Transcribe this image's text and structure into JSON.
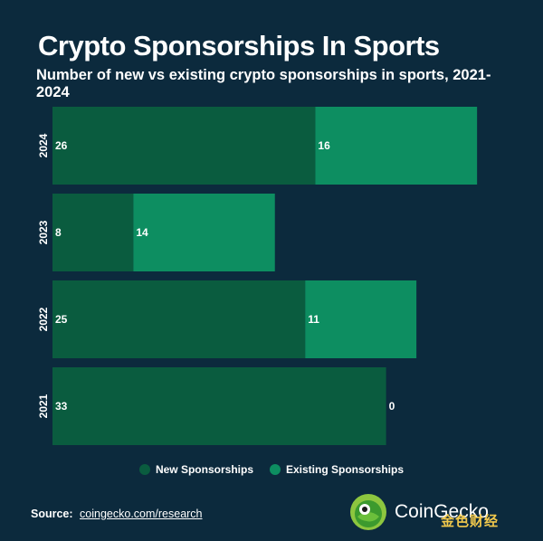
{
  "title": "Crypto Sponsorships In Sports",
  "subtitle": "Number of new vs existing crypto sponsorships in sports, 2021-2024",
  "colors": {
    "background": "#0c2a3d",
    "new": "#0a5c3f",
    "existing": "#0d8e61",
    "text": "#ffffff"
  },
  "chart_data": {
    "type": "bar",
    "orientation": "horizontal",
    "stacked": true,
    "title": "Crypto Sponsorships In Sports",
    "subtitle": "Number of new vs existing crypto sponsorships in sports, 2021-2024",
    "categories": [
      "2024",
      "2023",
      "2022",
      "2021"
    ],
    "series": [
      {
        "name": "New Sponsorships",
        "values": [
          26,
          8,
          25,
          33
        ]
      },
      {
        "name": "Existing Sponsorships",
        "values": [
          16,
          14,
          11,
          0
        ]
      }
    ],
    "xlim": [
      0,
      42
    ],
    "grid": false,
    "legend": "bottom-center"
  },
  "legend": {
    "items": [
      {
        "label": "New Sponsorships",
        "color": "#0a5c3f"
      },
      {
        "label": "Existing Sponsorships",
        "color": "#0d8e61"
      }
    ]
  },
  "source": {
    "label": "Source:",
    "link": "coingecko.com/research"
  },
  "brand": {
    "name": "CoinGecko",
    "icon": "gecko-logo-icon"
  },
  "watermark": {
    "text": "金色财经",
    "icon": "jinse-logo-icon"
  }
}
